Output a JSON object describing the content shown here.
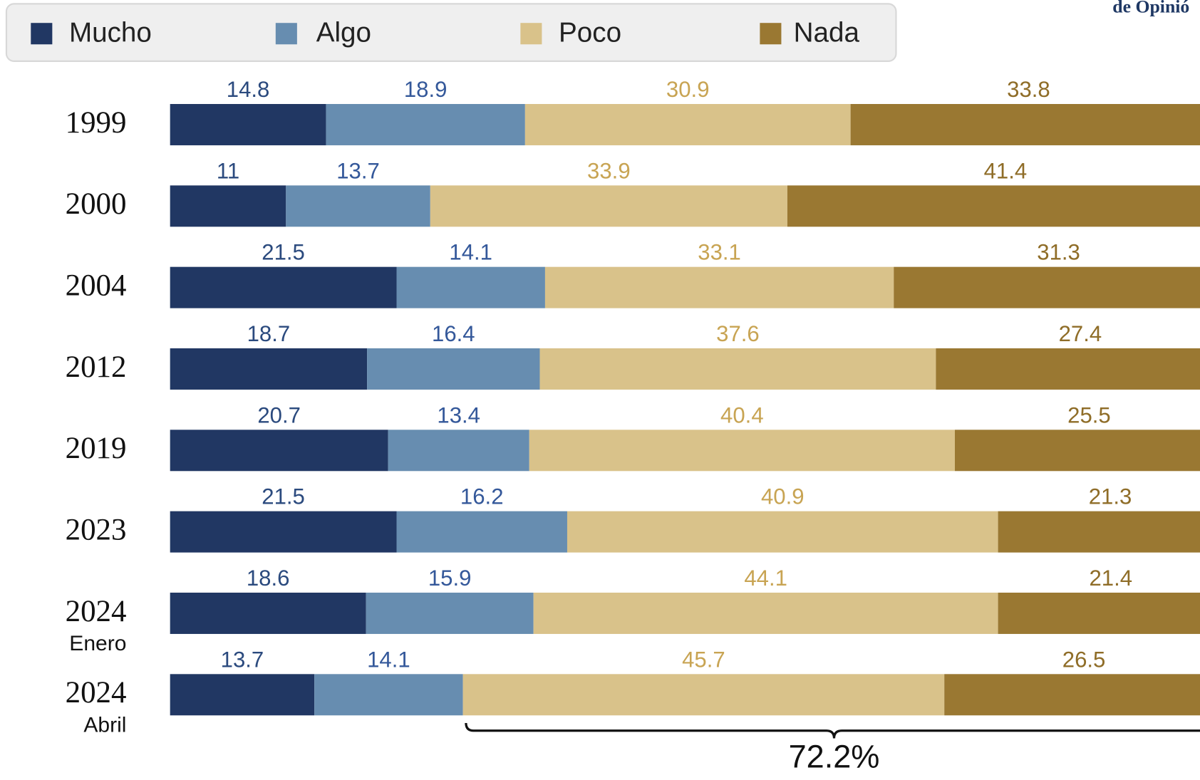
{
  "header": {
    "source": "de Opinió"
  },
  "chart_data": {
    "type": "stacked-bar-horizontal",
    "categories": [
      "1999",
      "2000",
      "2004",
      "2012",
      "2019",
      "2023",
      "2024",
      "2024"
    ],
    "category_notes": [
      null,
      null,
      null,
      null,
      null,
      null,
      "Enero",
      "Abril"
    ],
    "series": [
      {
        "name": "Mucho",
        "color": "#213763",
        "label_color": "#2b4a7e",
        "values": [
          14.8,
          11,
          21.5,
          18.7,
          20.7,
          21.5,
          18.6,
          13.7
        ]
      },
      {
        "name": "Algo",
        "color": "#678db0",
        "label_color": "#34589a",
        "values": [
          18.9,
          13.7,
          14.1,
          16.4,
          13.4,
          16.2,
          15.9,
          14.1
        ]
      },
      {
        "name": "Poco",
        "color": "#d9c28a",
        "label_color": "#c8a453",
        "values": [
          30.9,
          33.9,
          33.1,
          37.6,
          40.4,
          40.9,
          44.1,
          45.7
        ]
      },
      {
        "name": "Nada",
        "color": "#9a7832",
        "label_color": "#8f6d28",
        "values": [
          33.8,
          41.4,
          31.3,
          27.4,
          25.5,
          21.3,
          21.4,
          26.5
        ]
      }
    ],
    "annotation": "72.2%"
  }
}
